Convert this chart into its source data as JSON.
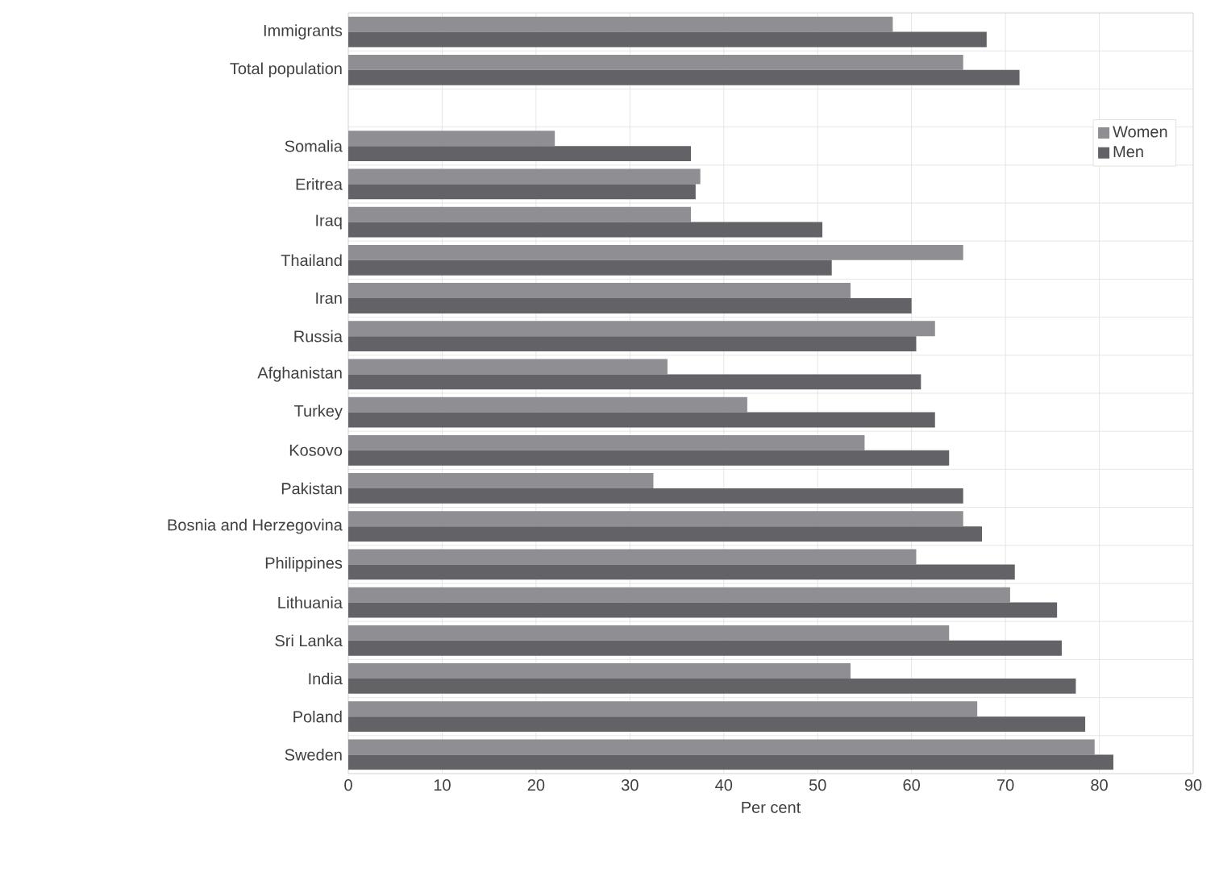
{
  "chart_data": {
    "type": "bar",
    "orientation": "horizontal",
    "xlabel": "Per cent",
    "categories": [
      "Immigrants",
      "Total population",
      null,
      "Somalia",
      "Eritrea",
      "Iraq",
      "Thailand",
      "Iran",
      "Russia",
      "Afghanistan",
      "Turkey",
      "Kosovo",
      "Pakistan",
      "Bosnia and Herzegovina",
      "Philippines",
      "Lithuania",
      "Sri Lanka",
      "India",
      "Poland",
      "Sweden"
    ],
    "series": [
      {
        "name": "Women",
        "color": "#8f8f93",
        "values": [
          58,
          65.5,
          null,
          22,
          37.5,
          36.5,
          65.5,
          53.5,
          62.5,
          34,
          42.5,
          55,
          32.5,
          65.5,
          60.5,
          70.5,
          64,
          53.5,
          67,
          79.5
        ]
      },
      {
        "name": "Men",
        "color": "#636267",
        "values": [
          68,
          71.5,
          null,
          36.5,
          37,
          50.5,
          51.5,
          60,
          60.5,
          61,
          62.5,
          64,
          65.5,
          67.5,
          71,
          75.5,
          76,
          77.5,
          78.5,
          81.5
        ]
      }
    ],
    "xlim": [
      0,
      90
    ],
    "xticks": [
      0,
      10,
      20,
      30,
      40,
      50,
      60,
      70,
      80,
      90
    ],
    "grid": true,
    "legend": "top right"
  }
}
